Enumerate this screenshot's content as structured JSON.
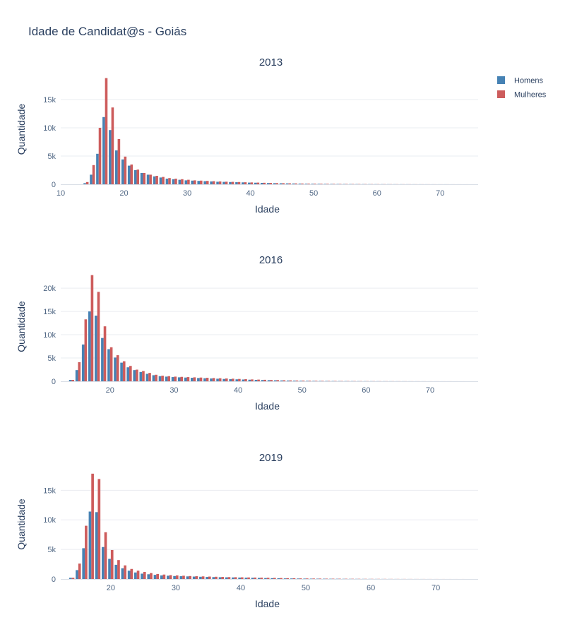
{
  "page_title": "Idade de Candidat@s - Goiás",
  "colors": {
    "homens": "#4682b4",
    "mulheres": "#cd5c5c",
    "grid": "#e9ecf1",
    "text": "#2a3f5f",
    "tick": "#506784"
  },
  "legend": [
    {
      "name": "Homens",
      "color": "#4682b4"
    },
    {
      "name": "Mulheres",
      "color": "#cd5c5c"
    }
  ],
  "chart_data": [
    {
      "type": "bar",
      "title": "2013",
      "xlabel": "Idade",
      "ylabel": "Quantidade",
      "xlim": [
        10,
        76
      ],
      "ylim": [
        0,
        19500
      ],
      "xticks": [
        10,
        20,
        30,
        40,
        50,
        60,
        70
      ],
      "yticks": [
        0,
        5000,
        10000,
        15000
      ],
      "ytick_labels": [
        "0",
        "5k",
        "10k",
        "15k"
      ],
      "x": [
        14,
        15,
        16,
        17,
        18,
        19,
        20,
        21,
        22,
        23,
        24,
        25,
        26,
        27,
        28,
        29,
        30,
        31,
        32,
        33,
        34,
        35,
        36,
        37,
        38,
        39,
        40,
        41,
        42,
        43,
        44,
        45,
        46,
        47,
        48,
        49,
        50,
        51,
        52,
        53,
        54,
        55,
        56,
        57,
        58,
        59,
        60,
        61,
        62,
        63,
        64,
        65,
        66,
        67,
        68,
        69,
        70,
        71,
        72,
        73,
        74
      ],
      "series": [
        {
          "name": "Homens",
          "values": [
            200,
            1700,
            5400,
            11900,
            9600,
            6000,
            4400,
            3300,
            2500,
            2000,
            1700,
            1400,
            1200,
            1000,
            900,
            800,
            700,
            650,
            600,
            550,
            500,
            450,
            430,
            400,
            370,
            340,
            300,
            280,
            250,
            220,
            200,
            180,
            160,
            140,
            120,
            100,
            90,
            80,
            70,
            60,
            55,
            50,
            45,
            40,
            35,
            30,
            28,
            25,
            22,
            20,
            18,
            15,
            13,
            11,
            10,
            9,
            8,
            7,
            6,
            5,
            4
          ]
        },
        {
          "name": "Mulheres",
          "values": [
            400,
            3400,
            10000,
            18800,
            13600,
            8000,
            4900,
            3500,
            2600,
            2000,
            1700,
            1500,
            1300,
            1100,
            1000,
            900,
            800,
            700,
            650,
            600,
            550,
            500,
            460,
            430,
            400,
            360,
            330,
            300,
            270,
            240,
            210,
            190,
            170,
            150,
            130,
            110,
            100,
            90,
            80,
            70,
            60,
            55,
            50,
            45,
            40,
            35,
            30,
            27,
            24,
            21,
            18,
            16,
            14,
            12,
            10,
            9,
            8,
            7,
            6,
            5,
            4
          ]
        }
      ]
    },
    {
      "type": "bar",
      "title": "2016",
      "xlabel": "Idade",
      "ylabel": "Quantidade",
      "xlim": [
        12.3,
        77.5
      ],
      "ylim": [
        0,
        23500
      ],
      "xticks": [
        20,
        30,
        40,
        50,
        60,
        70
      ],
      "yticks": [
        0,
        5000,
        10000,
        15000,
        20000
      ],
      "ytick_labels": [
        "0",
        "5k",
        "10k",
        "15k",
        "20k"
      ],
      "x": [
        14,
        15,
        16,
        17,
        18,
        19,
        20,
        21,
        22,
        23,
        24,
        25,
        26,
        27,
        28,
        29,
        30,
        31,
        32,
        33,
        34,
        35,
        36,
        37,
        38,
        39,
        40,
        41,
        42,
        43,
        44,
        45,
        46,
        47,
        48,
        49,
        50,
        51,
        52,
        53,
        54,
        55,
        56,
        57,
        58,
        59,
        60,
        61,
        62,
        63,
        64,
        65,
        66,
        67,
        68,
        69,
        70,
        71,
        72,
        73,
        74,
        75
      ],
      "series": [
        {
          "name": "Homens",
          "values": [
            300,
            2400,
            7900,
            15000,
            14100,
            9300,
            6900,
            5100,
            4000,
            3000,
            2400,
            2000,
            1600,
            1300,
            1100,
            1000,
            900,
            850,
            800,
            750,
            700,
            650,
            600,
            550,
            500,
            450,
            420,
            380,
            340,
            300,
            270,
            240,
            210,
            180,
            160,
            140,
            120,
            100,
            90,
            80,
            70,
            60,
            55,
            50,
            45,
            40,
            35,
            30,
            27,
            24,
            21,
            18,
            16,
            14,
            12,
            10,
            9,
            8,
            7,
            6,
            5,
            4
          ]
        },
        {
          "name": "Mulheres",
          "values": [
            300,
            4100,
            13300,
            22800,
            19200,
            11800,
            7300,
            5600,
            4300,
            3300,
            2500,
            2200,
            1800,
            1400,
            1200,
            1100,
            1000,
            950,
            900,
            850,
            800,
            750,
            700,
            650,
            600,
            550,
            500,
            450,
            400,
            360,
            320,
            280,
            250,
            220,
            190,
            160,
            140,
            120,
            100,
            90,
            80,
            70,
            60,
            55,
            50,
            45,
            40,
            35,
            30,
            27,
            24,
            21,
            18,
            16,
            14,
            12,
            10,
            9,
            8,
            7,
            6,
            5
          ]
        }
      ]
    },
    {
      "type": "bar",
      "title": "2019",
      "xlabel": "Idade",
      "ylabel": "Quantidade",
      "xlim": [
        12.3,
        76.5
      ],
      "ylim": [
        0,
        18500
      ],
      "xticks": [
        20,
        30,
        40,
        50,
        60,
        70
      ],
      "yticks": [
        0,
        5000,
        10000,
        15000
      ],
      "ytick_labels": [
        "0",
        "5k",
        "10k",
        "15k"
      ],
      "x": [
        14,
        15,
        16,
        17,
        18,
        19,
        20,
        21,
        22,
        23,
        24,
        25,
        26,
        27,
        28,
        29,
        30,
        31,
        32,
        33,
        34,
        35,
        36,
        37,
        38,
        39,
        40,
        41,
        42,
        43,
        44,
        45,
        46,
        47,
        48,
        49,
        50,
        51,
        52,
        53,
        54,
        55,
        56,
        57,
        58,
        59,
        60,
        61,
        62,
        63,
        64,
        65,
        66,
        67,
        68,
        69,
        70,
        71,
        72,
        73,
        74
      ],
      "series": [
        {
          "name": "Homens",
          "values": [
            200,
            1500,
            5200,
            11400,
            11300,
            5400,
            3400,
            2400,
            1800,
            1400,
            1100,
            900,
            800,
            700,
            600,
            550,
            500,
            470,
            440,
            410,
            380,
            350,
            320,
            300,
            280,
            260,
            240,
            220,
            200,
            180,
            160,
            140,
            120,
            100,
            90,
            80,
            70,
            60,
            55,
            50,
            45,
            40,
            35,
            30,
            27,
            24,
            21,
            18,
            16,
            14,
            12,
            10,
            9,
            8,
            7,
            6,
            5,
            4,
            3,
            3,
            2
          ]
        },
        {
          "name": "Mulheres",
          "values": [
            200,
            2600,
            9000,
            17800,
            16900,
            7900,
            4900,
            3200,
            2300,
            1700,
            1400,
            1200,
            1000,
            850,
            750,
            650,
            600,
            550,
            500,
            470,
            440,
            410,
            380,
            350,
            320,
            300,
            280,
            260,
            240,
            220,
            200,
            180,
            160,
            140,
            120,
            100,
            90,
            80,
            70,
            60,
            55,
            50,
            45,
            40,
            35,
            30,
            27,
            24,
            21,
            18,
            16,
            14,
            12,
            10,
            9,
            8,
            7,
            6,
            5,
            4,
            3
          ]
        }
      ]
    }
  ]
}
